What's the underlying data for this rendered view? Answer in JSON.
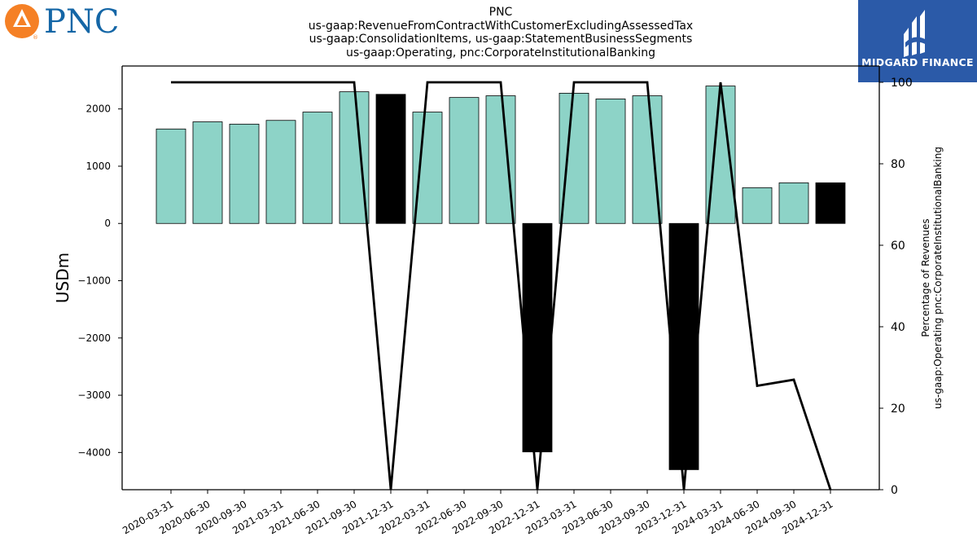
{
  "header": {
    "company_logo_text": "PNC",
    "watermark_brand": "MIDGARD FINANCE",
    "title_lines": [
      "PNC",
      "us-gaap:RevenueFromContractWithCustomerExcludingAssessedTax",
      "us-gaap:ConsolidationItems, us-gaap:StatementBusinessSegments",
      "us-gaap:Operating, pnc:CorporateInstitutionalBanking"
    ]
  },
  "colors": {
    "bar_positive": "#8dd3c7",
    "bar_highlight": "#000000",
    "line": "#000000",
    "pnc_orange": "#f58025",
    "pnc_blue": "#1466a6",
    "midgard_blue": "#2b5aa8"
  },
  "chart_data": {
    "type": "bar",
    "categories": [
      "2020-03-31",
      "2020-06-30",
      "2020-09-30",
      "2021-03-31",
      "2021-06-30",
      "2021-09-30",
      "2021-12-31",
      "2022-03-31",
      "2022-06-30",
      "2022-09-30",
      "2022-12-31",
      "2023-03-31",
      "2023-06-30",
      "2023-09-30",
      "2023-12-31",
      "2024-03-31",
      "2024-06-30",
      "2024-09-30",
      "2024-12-31"
    ],
    "series": [
      {
        "axis": "left",
        "type": "bar",
        "values": [
          1650,
          1775,
          1735,
          1800,
          1945,
          2300,
          2255,
          1945,
          2200,
          2230,
          -3990,
          2275,
          2175,
          2230,
          -4300,
          2400,
          625,
          710,
          710
        ],
        "highlight": [
          false,
          false,
          false,
          false,
          false,
          false,
          true,
          false,
          false,
          false,
          true,
          false,
          false,
          false,
          true,
          false,
          false,
          false,
          true
        ]
      },
      {
        "axis": "right",
        "type": "line",
        "values": [
          100,
          100,
          100,
          100,
          100,
          100,
          0,
          100,
          100,
          100,
          0,
          100,
          100,
          100,
          0,
          100,
          25.5,
          27,
          0
        ]
      }
    ],
    "ylabel": "USDm",
    "y2label_lines": [
      "Percentage of Revenues",
      "us-gaap:Operating pnc:CorporateInstitutionalBanking"
    ],
    "ylim": [
      -4650,
      2750
    ],
    "y2lim": [
      0,
      104
    ],
    "yticks": [
      -4000,
      -3000,
      -2000,
      -1000,
      0,
      1000,
      2000
    ],
    "y2ticks": [
      0,
      20,
      40,
      60,
      80,
      100
    ],
    "grid": false,
    "legend": "none"
  }
}
